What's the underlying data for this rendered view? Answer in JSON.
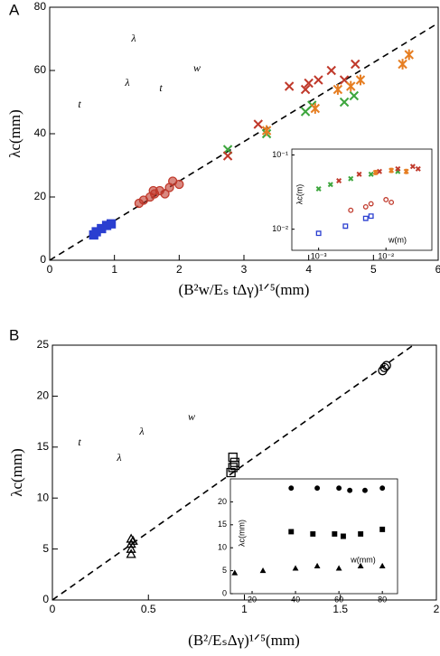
{
  "chart_data": [
    {
      "type": "scatter",
      "panel_label": "A",
      "xlabel": "(B²w/Eₛ tΔγ)¹ᐟ⁵(mm)",
      "ylabel": "λc(mm)",
      "xlim": [
        0,
        6
      ],
      "ylim": [
        0,
        80
      ],
      "xticks": [
        0,
        1,
        2,
        3,
        4,
        5,
        6
      ],
      "yticks": [
        0,
        20,
        40,
        60,
        80
      ],
      "fit_line": {
        "x": [
          0,
          6
        ],
        "y": [
          0,
          75
        ]
      },
      "annotations": [
        "λ",
        "w",
        "t",
        "λ",
        "t"
      ],
      "series": [
        {
          "marker": "square",
          "color": "#2a3fd0",
          "x": [
            0.68,
            0.72,
            0.8,
            0.88,
            0.95
          ],
          "y": [
            8,
            9,
            10,
            11,
            11.5
          ]
        },
        {
          "marker": "circle",
          "color": "#c0392b",
          "x": [
            1.38,
            1.45,
            1.55,
            1.62,
            1.7,
            1.78,
            1.85,
            1.9,
            2.0,
            1.6
          ],
          "y": [
            18,
            19,
            20,
            21,
            22,
            21,
            23,
            25,
            24,
            22
          ]
        },
        {
          "marker": "x",
          "color": "#3da63d",
          "x": [
            2.75,
            3.35,
            3.95,
            4.05,
            4.7,
            4.55
          ],
          "y": [
            35,
            40,
            47,
            49,
            52,
            50
          ]
        },
        {
          "marker": "x",
          "color": "#c0392b",
          "x": [
            2.75,
            3.22,
            3.7,
            3.95,
            4.15,
            4.35,
            4.55,
            4.72,
            4.0
          ],
          "y": [
            33,
            43,
            55,
            54,
            57,
            60,
            57,
            62,
            56
          ]
        },
        {
          "marker": "asterisk",
          "color": "#e67e22",
          "x": [
            3.35,
            4.1,
            4.45,
            4.65,
            5.45,
            5.55,
            4.8
          ],
          "y": [
            41,
            48,
            54,
            55,
            62,
            65,
            57
          ]
        }
      ]
    },
    {
      "type": "scatter",
      "xlabel": "w(m)",
      "ylabel": "λc(m)",
      "log_x": true,
      "log_y": true,
      "xlim": [
        0.0004,
        0.048
      ],
      "ylim": [
        0.0052,
        0.12
      ],
      "xticks": [
        {
          "value": 0.001,
          "label": "10⁻³"
        },
        {
          "value": 0.01,
          "label": "10⁻²"
        }
      ],
      "yticks": [
        {
          "value": 0.01,
          "label": "10⁻²"
        },
        {
          "value": 0.1,
          "label": "10⁻¹"
        }
      ],
      "series": [
        {
          "marker": "square",
          "color": "#2a3fd0",
          "x": [
            0.001,
            0.0025,
            0.005,
            0.006
          ],
          "y": [
            0.0088,
            0.011,
            0.014,
            0.015
          ]
        },
        {
          "marker": "circle",
          "color": "#c0392b",
          "x": [
            0.003,
            0.005,
            0.006,
            0.01,
            0.012
          ],
          "y": [
            0.018,
            0.02,
            0.022,
            0.025,
            0.023
          ]
        },
        {
          "marker": "x",
          "color": "#3da63d",
          "x": [
            0.001,
            0.0015,
            0.003,
            0.006,
            0.015
          ],
          "y": [
            0.035,
            0.04,
            0.048,
            0.055,
            0.06
          ]
        },
        {
          "marker": "x",
          "color": "#c0392b",
          "x": [
            0.002,
            0.004,
            0.008,
            0.015,
            0.025,
            0.03
          ],
          "y": [
            0.045,
            0.055,
            0.06,
            0.065,
            0.07,
            0.065
          ]
        },
        {
          "marker": "asterisk",
          "color": "#e67e22",
          "x": [
            0.007,
            0.012,
            0.02
          ],
          "y": [
            0.058,
            0.062,
            0.06
          ]
        }
      ]
    },
    {
      "type": "scatter",
      "panel_label": "B",
      "xlabel": "(B²/EₛΔγ)¹ᐟ⁵(mm)",
      "ylabel": "λc(mm)",
      "xlim": [
        0,
        2
      ],
      "ylim": [
        0,
        25
      ],
      "xticks": [
        0,
        0.5,
        1,
        1.5,
        2
      ],
      "yticks": [
        0,
        5,
        10,
        15,
        20,
        25
      ],
      "fit_line": {
        "x": [
          0,
          1.88
        ],
        "y": [
          0,
          25
        ]
      },
      "annotations": [
        "w",
        "t",
        "λ",
        "λ"
      ],
      "series": [
        {
          "marker": "triangle",
          "color": "#000000",
          "x": [
            0.41,
            0.41,
            0.41,
            0.41,
            0.42
          ],
          "y": [
            4.5,
            5,
            5.5,
            6,
            5.8
          ]
        },
        {
          "marker": "square",
          "color": "#000000",
          "x": [
            0.93,
            0.94,
            0.95,
            0.94,
            0.95
          ],
          "y": [
            12.5,
            13,
            13.5,
            14,
            13.2
          ]
        },
        {
          "marker": "circle",
          "color": "#000000",
          "x": [
            1.72,
            1.73,
            1.74
          ],
          "y": [
            22.5,
            22.8,
            23
          ]
        }
      ]
    },
    {
      "type": "scatter",
      "xlabel": "w(mm)",
      "ylabel": "λc(mm)",
      "xlim": [
        10,
        87
      ],
      "ylim": [
        0,
        25
      ],
      "xticks": [
        20,
        40,
        60,
        80
      ],
      "yticks": [
        0,
        5,
        10,
        15,
        20
      ],
      "series": [
        {
          "marker": "triangle-filled",
          "color": "#000000",
          "x": [
            12,
            25,
            40,
            50,
            60,
            70,
            80
          ],
          "y": [
            4.5,
            5,
            5.5,
            6,
            5.5,
            6,
            6
          ]
        },
        {
          "marker": "square-filled",
          "color": "#000000",
          "x": [
            38,
            48,
            58,
            62,
            70,
            80
          ],
          "y": [
            13.5,
            13,
            13,
            12.5,
            13,
            14
          ]
        },
        {
          "marker": "circle-filled",
          "color": "#000000",
          "x": [
            38,
            50,
            60,
            65,
            72,
            80
          ],
          "y": [
            23,
            23,
            23,
            22.5,
            22.5,
            23
          ]
        }
      ]
    }
  ]
}
